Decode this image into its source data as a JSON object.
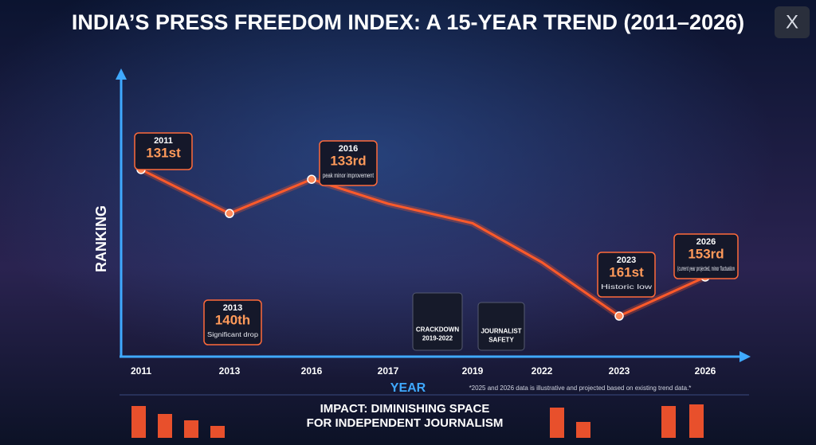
{
  "chart_data": {
    "type": "line",
    "title": "INDIA’S PRESS FREEDOM INDEX: A 15-YEAR TREND (2011–2026)",
    "y_label": "RANKING",
    "x_label": "YEAR",
    "categories": [
      "2011",
      "2013",
      "2016",
      "2017",
      "2019",
      "2022",
      "2023",
      "2026"
    ],
    "values": [
      131,
      140,
      133,
      138,
      142,
      150,
      161,
      153
    ],
    "value_labels": [
      "131st",
      "140th",
      "133rd",
      null,
      null,
      null,
      "161st",
      "153rd"
    ],
    "notes": [
      null,
      "Significant drop",
      "peak minor improvement",
      null,
      null,
      null,
      "Historic low",
      "(current year projected, minor fluctuation"
    ],
    "ylim": [
      168,
      124
    ],
    "color": "#ff5a2a",
    "annotations": [
      "CRACKDOWN 2019-2022",
      "JOURNALIST SAFETY"
    ],
    "footnote": "*2025 and 2026 data is illustrative and projected based on existing trend data.*",
    "banner": "IMPACT: DIMINISHING SPACE FOR INDEPENDENT JOURNALISM",
    "logo": "X"
  }
}
